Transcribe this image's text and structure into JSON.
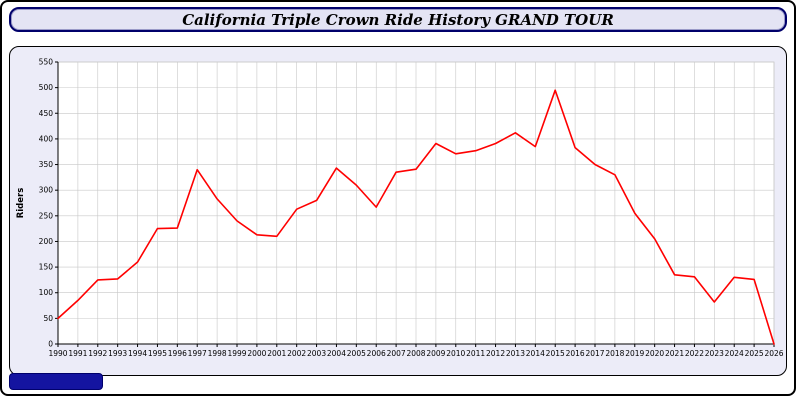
{
  "window": {
    "title": "California Triple Crown Ride History GRAND TOUR"
  },
  "colors": {
    "line": "#ff0000",
    "panel_background": "#ECECF8",
    "plot_background": "#ffffff",
    "grid": "#c8c8c8",
    "axis": "#000000",
    "title_bar_background": "#E4E4F4",
    "title_bar_border": "#00006b",
    "bottom_bar": "#1414a0"
  },
  "chart_data": {
    "type": "line",
    "title": "California Triple Crown Ride History GRAND TOUR",
    "xlabel": "",
    "ylabel": "Riders",
    "ylim": [
      0,
      550
    ],
    "ytick_step": 50,
    "grid": true,
    "legend": "none",
    "x": [
      1990,
      1991,
      1992,
      1993,
      1994,
      1995,
      1996,
      1997,
      1998,
      1999,
      2000,
      2001,
      2002,
      2003,
      2004,
      2005,
      2006,
      2007,
      2008,
      2009,
      2010,
      2011,
      2012,
      2013,
      2014,
      2015,
      2016,
      2017,
      2018,
      2019,
      2020,
      2021,
      2022,
      2023,
      2024,
      2025,
      2026
    ],
    "values": [
      50,
      85,
      125,
      127,
      160,
      225,
      226,
      340,
      283,
      240,
      213,
      210,
      263,
      280,
      343,
      310,
      267,
      335,
      341,
      391,
      371,
      377,
      391,
      412,
      385,
      495,
      383,
      350,
      330,
      255,
      205,
      135,
      131,
      82,
      130,
      126,
      0
    ]
  }
}
